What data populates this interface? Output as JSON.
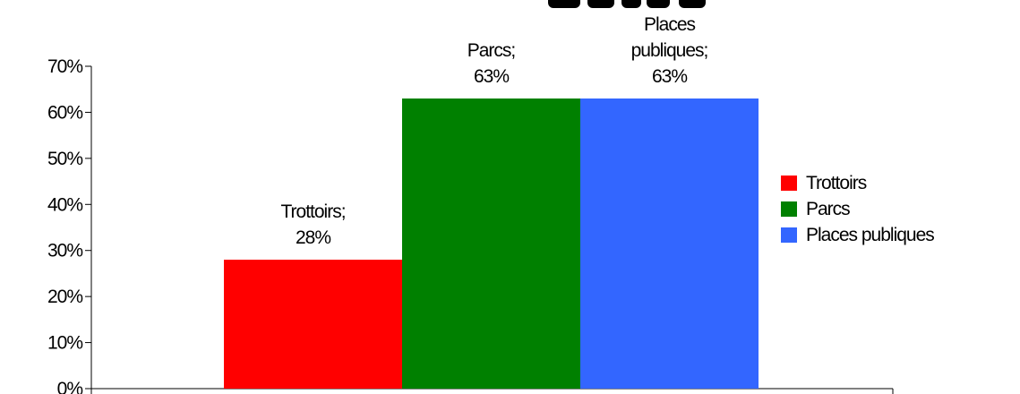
{
  "chart_data": {
    "type": "bar",
    "categories": [
      "Trottoirs",
      "Parcs",
      "Places publiques"
    ],
    "values": [
      28,
      63,
      63
    ],
    "data_labels": [
      [
        "Trottoirs;",
        "28%"
      ],
      [
        "Parcs;",
        "63%"
      ],
      [
        "Places",
        "publiques;",
        "63%"
      ]
    ],
    "colors": [
      "#ff0000",
      "#008000",
      "#3366ff"
    ],
    "y_ticks": [
      "0%",
      "10%",
      "20%",
      "30%",
      "40%",
      "50%",
      "60%",
      "70%"
    ],
    "ylim": [
      0,
      70
    ],
    "grid": false,
    "legend_position": "right",
    "legend": [
      "Trottoirs",
      "Parcs",
      "Places publiques"
    ]
  }
}
